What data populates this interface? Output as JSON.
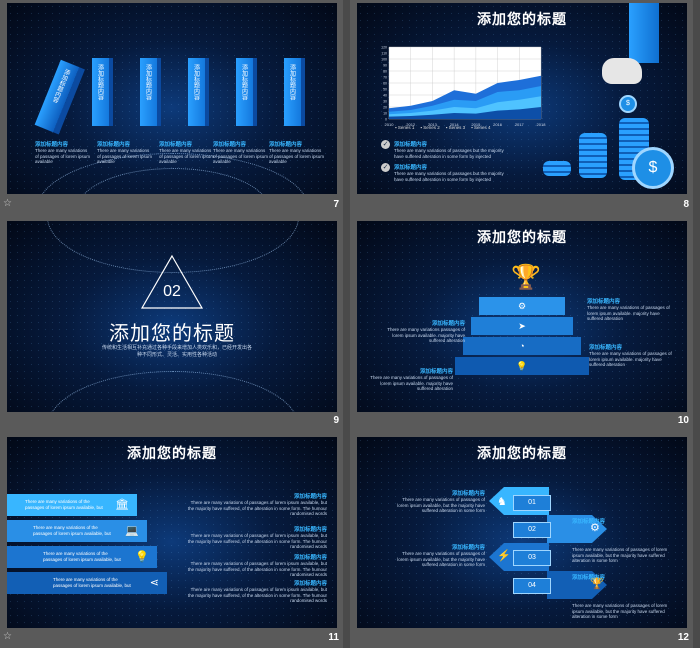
{
  "slides": [
    {
      "number": "7",
      "title": "",
      "blocks": [
        "添加标题内容",
        "添加标题内容",
        "添加标题内容",
        "添加标题内容",
        "添加标题内容",
        "添加标题内容"
      ],
      "caption_heads": [
        "添加标题内容",
        "添加标题内容",
        "添加标题内容",
        "添加标题内容",
        "添加标题内容"
      ],
      "caption_text": "There are many variations of passages of lorem ipsum available"
    },
    {
      "number": "8",
      "title": "添加您的标题",
      "legend": [
        "Series 1",
        "Series 2",
        "Series 3",
        "Series 4"
      ],
      "items": [
        {
          "head": "添加标题内容",
          "text": "There are many variations of passages but the majority have suffered alteration in some form by injected"
        },
        {
          "head": "添加标题内容",
          "text": "There are many variations of passages but the majority have suffered alteration in some form by injected"
        }
      ]
    },
    {
      "number": "9",
      "section_number": "02",
      "title": "添加您的标题",
      "subtitle": "传统和生活相互补充通过各种手段来增加人类欢乐和，已经开发出各种不同形式、灵活、实用性各种活动"
    },
    {
      "number": "10",
      "title": "添加您的标题",
      "items": [
        {
          "head": "添加标题内容",
          "text": "There are many variations of passages of lorem ipsum available. majority have suffered alteration"
        },
        {
          "head": "添加标题内容",
          "text": "There are many variations passages of lorem ipsum available. majority have suffered alteration"
        },
        {
          "head": "添加标题内容",
          "text": "There are many variations of passages of lorem ipsum available. majority have suffered alteration"
        },
        {
          "head": "添加标题内容",
          "text": "There are many variations of passages of lorem ipsum available. majority have suffered alteration"
        }
      ]
    },
    {
      "number": "11",
      "title": "添加您的标题",
      "bars": [
        "There are many variations of the passages of lorem ipsum available, but",
        "There are many variations of the passages of lorem ipsum available, but",
        "There are many variations of the passages of lorem ipsum available, but",
        "There are many variations of the passages of lorem ipsum available, but"
      ],
      "items": [
        {
          "head": "添加标题内容",
          "text": "There are many variations of passages of lorem ipsum available, but the majority have suffered, of the alteration in some form. The humour randomised words"
        },
        {
          "head": "添加标题内容",
          "text": "There are many variations of passages of lorem ipsum available, but the majority have suffered, of the alteration in some form. The humour randomised words"
        },
        {
          "head": "添加标题内容",
          "text": "There are many variations of passages of lorem ipsum available, but the majority have suffered, of the alteration in some form. The humour randomised words"
        },
        {
          "head": "添加标题内容",
          "text": "There are many variations of passages of lorem ipsum available, but the majority have suffered, of the alteration in some form. The humour randomised words"
        }
      ]
    },
    {
      "number": "12",
      "title": "添加您的标题",
      "steps": [
        "01",
        "02",
        "03",
        "04"
      ],
      "items": [
        {
          "head": "添加标题内容",
          "text": "There are many variations of passages of lorem ipsum available, but the majority have suffered alteration in some form"
        },
        {
          "head": "添加标题内容",
          "text": "There are many variations of passages of lorem ipsum available, but the majority have suffered alteration in some form"
        },
        {
          "head": "添加标题内容",
          "text": "There are many variations of passages of lorem ipsum available, but the majority have suffered alteration in some form"
        },
        {
          "head": "添加标题内容",
          "text": "There are many variations of passages of lorem ipsum available, but the majority have suffered alteration in some form"
        }
      ]
    }
  ],
  "chart_data": {
    "type": "area",
    "categories": [
      "2010",
      "2012",
      "2013",
      "2014",
      "2015",
      "2016",
      "2017",
      "2018"
    ],
    "series": [
      {
        "name": "Series 1",
        "values": [
          18,
          22,
          30,
          48,
          42,
          60,
          65,
          72
        ]
      },
      {
        "name": "Series 2",
        "values": [
          12,
          15,
          22,
          32,
          30,
          45,
          48,
          55
        ]
      },
      {
        "name": "Series 3",
        "values": [
          8,
          10,
          14,
          20,
          18,
          28,
          32,
          38
        ]
      },
      {
        "name": "Series 4",
        "values": [
          4,
          5,
          7,
          10,
          9,
          14,
          16,
          20
        ]
      }
    ],
    "ylim": [
      0,
      120
    ],
    "yticks": [
      "0",
      "10",
      "20",
      "30",
      "40",
      "50",
      "60",
      "70",
      "80",
      "90",
      "100",
      "110",
      "120"
    ],
    "legend_position": "bottom",
    "colors": [
      "#1e6fd9",
      "#2a9cf5",
      "#4fc3ff",
      "#0d4fa8"
    ]
  },
  "colors": {
    "accent": "#38b6ff",
    "block": "#1e8fe6",
    "dark_block": "#0f5fb8"
  },
  "footer_icon": "star-icon"
}
